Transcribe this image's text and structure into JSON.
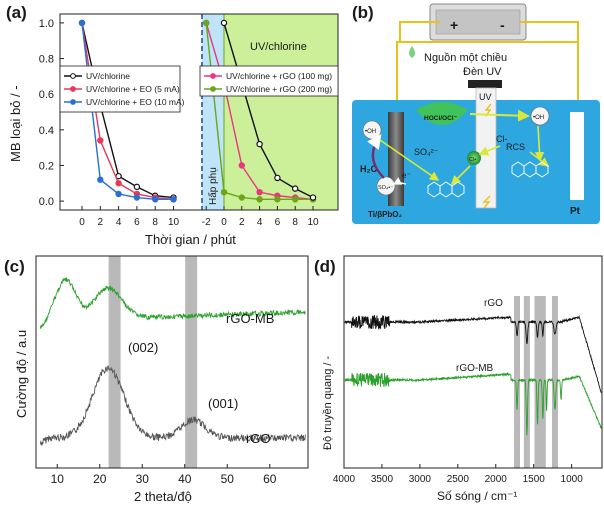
{
  "panels": {
    "a": "(a)",
    "b": "(b)",
    "c": "(c)",
    "d": "(d)"
  },
  "colors": {
    "black_series": "#111111",
    "red_series": "#e8375a",
    "blue_series": "#2a6fd6",
    "pink_series": "#e8377d",
    "green_series": "#6aa619",
    "adsorption_bg": "#bfe3f7",
    "uv_bg": "#ccf09a",
    "cell_bg": "#2ea7e0",
    "xrd_green": "#2ca02c",
    "xrd_gray": "#555555",
    "band": "#b9b9b9"
  },
  "chart_data": [
    {
      "id": "a",
      "type": "line",
      "ylabel": "MB loại bỏ / -",
      "xlabel": "Thời gian / phút",
      "ylim": [
        -0.05,
        1.05
      ],
      "yticks": [
        "0.0",
        "0.2",
        "0.4",
        "0.6",
        "0.8",
        "1.0"
      ],
      "xticks_left": [
        "0",
        "2",
        "4",
        "6",
        "8",
        "10"
      ],
      "xticks_right": [
        "-2",
        "0",
        "2",
        "4",
        "6",
        "8",
        "10"
      ],
      "region_adsorption": "Hấp phụ",
      "region_uv": "UV/chlorine",
      "series": [
        {
          "name": "UV/chlorine",
          "x": [
            0,
            2,
            4,
            6,
            8,
            10
          ],
          "values": [
            1.0,
            0.54,
            0.14,
            0.08,
            0.03,
            0.02
          ]
        },
        {
          "name": "UV/chlorine + EO (5 mA)",
          "x": [
            0,
            2,
            4,
            6,
            8,
            10
          ],
          "values": [
            1.0,
            0.34,
            0.1,
            0.04,
            0.02,
            0.01
          ]
        },
        {
          "name": "UV/chlorine + EO (10 mA)",
          "x": [
            0,
            2,
            4,
            6,
            8,
            10
          ],
          "values": [
            1.0,
            0.12,
            0.04,
            0.02,
            0.01,
            0.01
          ]
        },
        {
          "name": "UV/chlorine + rGO (100 mg)",
          "x": [
            -2,
            0,
            2,
            4,
            6,
            8,
            10
          ],
          "values": [
            1.0,
            0.66,
            0.2,
            0.05,
            0.03,
            0.02,
            0.01
          ]
        },
        {
          "name": "UV/chlorine + rGO (200 mg)",
          "x": [
            -2,
            0,
            2,
            4,
            6,
            8,
            10
          ],
          "values": [
            1.0,
            0.05,
            0.02,
            0.01,
            0.01,
            0.01,
            0.01
          ]
        }
      ],
      "extra_series": {
        "name": "UV/chlorine",
        "x": [
          0,
          2,
          4,
          6,
          8,
          10
        ],
        "values": [
          1.0,
          0.66,
          0.32,
          0.13,
          0.07,
          0.02
        ]
      }
    },
    {
      "id": "c",
      "type": "line",
      "ylabel": "Cường độ / a.u",
      "xlabel": "2 theta/độ",
      "xlim": [
        5,
        69
      ],
      "xticks": [
        "10",
        "20",
        "30",
        "40",
        "50",
        "60"
      ],
      "bands": [
        23.5,
        41.5
      ],
      "series": [
        {
          "name": "rGO-MB"
        },
        {
          "name": "rGO"
        }
      ],
      "annotations": [
        "(002)",
        "(001)"
      ]
    },
    {
      "id": "d",
      "type": "line",
      "ylabel": "Độ truyền quang / -",
      "xlabel": "Số sóng / cm⁻¹",
      "xlim": [
        4000,
        600
      ],
      "xticks": [
        "4000",
        "3500",
        "3000",
        "2500",
        "2000",
        "1500",
        "1000"
      ],
      "bands": [
        1720,
        1590,
        1450,
        1380,
        1220
      ],
      "series": [
        {
          "name": "rGO"
        },
        {
          "name": "rGO-MB"
        }
      ]
    }
  ],
  "schematic": {
    "power_label": "Nguồn một chiều",
    "plus": "+",
    "minus": "-",
    "uv_lamp": "Đèn UV",
    "uv_tube": "UV",
    "anode": "Ti/βPbO₂",
    "cathode": "Pt",
    "oh_species": "•OH",
    "hocl": "HOCl/OCl⁻",
    "cl_minus": "Cl-",
    "rcs": "RCS",
    "so4": "SO₄²⁻",
    "so4_rad": "SO₄•⁻",
    "h2o": "H₂O",
    "e_minus": "e⁻",
    "cl_rad": "Cl•"
  }
}
